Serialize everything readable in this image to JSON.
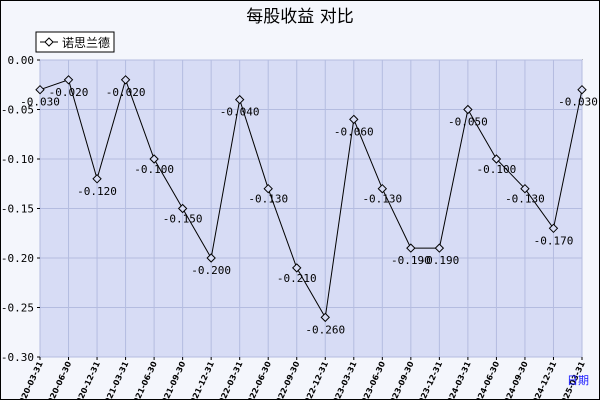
{
  "chart_data": {
    "type": "line",
    "title": "每股收益  对比",
    "xlabel": "日期",
    "ylabel": "",
    "ylim": [
      -0.3,
      0.0
    ],
    "yticks": [
      "0.00",
      "-0.05",
      "-0.10",
      "-0.15",
      "-0.20",
      "-0.25",
      "-0.30"
    ],
    "categories": [
      "2020-03-31",
      "2020-06-30",
      "2020-12-31",
      "2021-03-31",
      "2021-06-30",
      "2021-09-30",
      "2021-12-31",
      "2022-03-31",
      "2022-06-30",
      "2022-09-30",
      "2022-12-31",
      "2023-03-31",
      "2023-06-30",
      "2023-09-30",
      "2023-12-31",
      "2024-03-31",
      "2024-06-30",
      "2024-09-30",
      "2024-12-31",
      "2025-03-31"
    ],
    "series": [
      {
        "name": "诺思兰德",
        "values": [
          -0.03,
          -0.02,
          -0.12,
          -0.02,
          -0.1,
          -0.15,
          -0.2,
          -0.04,
          -0.13,
          -0.21,
          -0.26,
          -0.06,
          -0.13,
          -0.19,
          -0.19,
          -0.05,
          -0.1,
          -0.13,
          -0.17,
          -0.03
        ],
        "labels": [
          "-0.030",
          "-0.020",
          "-0.120",
          "-0.020",
          "-0.100",
          "-0.150",
          "-0.200",
          "-0.040",
          "-0.130",
          "-0.210",
          "-0.260",
          "-0.060",
          "-0.130",
          "-0.190",
          "-0.190",
          "-0.050",
          "-0.100",
          "-0.130",
          "-0.170",
          "-0.030"
        ]
      }
    ],
    "legend_position": "top-left",
    "grid": true,
    "colors": {
      "plot_background": "#d7dcf5",
      "grid": "#b4bce0",
      "line": "#000000",
      "xlabel": "#1a1aff"
    }
  }
}
